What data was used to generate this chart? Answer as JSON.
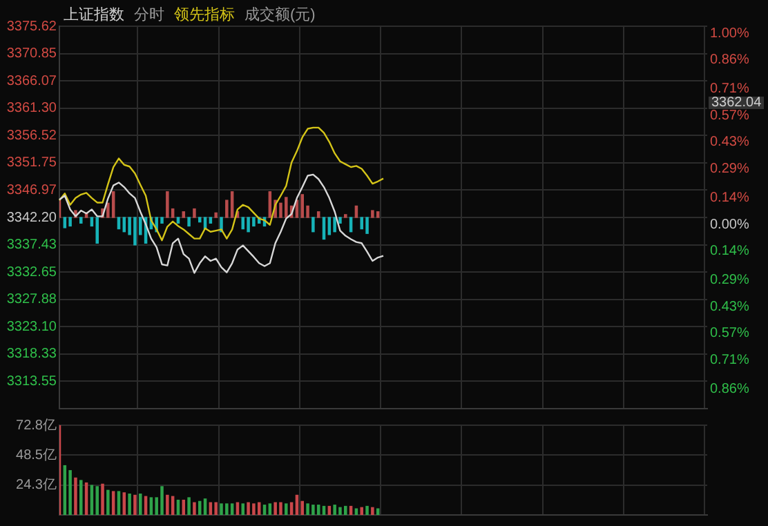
{
  "chart_data": [
    {
      "type": "line",
      "title": "上证指数",
      "annotations": [
        "分时",
        "成交额(元)",
        "3362.04"
      ],
      "grid": true,
      "tick_labels": "y",
      "categories": [
        null,
        null,
        null,
        null,
        null,
        null,
        null,
        null,
        null,
        null,
        null,
        null,
        null,
        null,
        null,
        null,
        null,
        null,
        null,
        null,
        null,
        null,
        null,
        null,
        null,
        null,
        null,
        null,
        null,
        null,
        null,
        null,
        null,
        null,
        null,
        null,
        null,
        null,
        null,
        null,
        null,
        null,
        null,
        null,
        null,
        null,
        null,
        null,
        null,
        null,
        null,
        null,
        null,
        null,
        null,
        null,
        null,
        null,
        null,
        null,
        null,
        null,
        null,
        null,
        null,
        null,
        null,
        null,
        null,
        null,
        null,
        null,
        null,
        null,
        null,
        null,
        null,
        null,
        null,
        null,
        null,
        null,
        null,
        null,
        null,
        null,
        null,
        null,
        null,
        null,
        null,
        null,
        null,
        null,
        null,
        null,
        null,
        null,
        null,
        null,
        null,
        null,
        null,
        null,
        null,
        null,
        null,
        null,
        null,
        null,
        null,
        null,
        null,
        null,
        null,
        null,
        null,
        null,
        null,
        null,
        null
      ],
      "ylim": [
        3308.78,
        3375.62
      ],
      "yticks": [
        3375.62,
        3370.85,
        3366.07,
        {
          "value": 3361.3,
          "label": "3361.30"
        },
        3356.52,
        3351.75,
        3346.97,
        {
          "value": 3342.2,
          "label": "3342.20"
        },
        3337.43,
        3332.65,
        3327.88,
        {
          "value": 3323.1,
          "label": "3323.10"
        },
        3318.33,
        3313.55,
        {
          "value": 3308.78,
          "label": null
        }
      ],
      "y2lim": [
        -1,
        1
      ],
      "y2ticks": [
        {
          "value": 1,
          "label": "1.00%"
        },
        {
          "value": 0.86,
          "label": "0.86%"
        },
        {
          "value": 0.71,
          "label": "0.71%"
        },
        {
          "value": 0.57,
          "label": "0.57%"
        },
        {
          "value": 0.43,
          "label": "0.43%"
        },
        {
          "value": 0.29,
          "label": "0.29%"
        },
        {
          "value": 0.14,
          "label": "0.14%"
        },
        {
          "value": 0,
          "label": "0.00%"
        },
        {
          "value": -0.14,
          "label": "0.14%"
        },
        {
          "value": -0.29,
          "label": "0.29%"
        },
        {
          "value": -0.43,
          "label": "0.43%"
        },
        {
          "value": -0.57,
          "label": "0.57%"
        },
        {
          "value": -0.71,
          "label": "0.71%"
        },
        {
          "value": -0.86,
          "label": "0.86%"
        },
        {
          "value": -1,
          "label": null
        }
      ],
      "series": [
        {
          "type": "bar",
          "base": [
            3342.2,
            3342.2,
            3342.2,
            3342.2,
            3342.2,
            3342.2,
            3342.2,
            3342.2,
            3342.2,
            3342.2,
            3342.2,
            3342.2,
            3342.2,
            3342.2,
            3342.2,
            3342.2,
            3342.2,
            3342.2,
            3342.2,
            3342.2,
            3342.2,
            3342.2,
            3342.2,
            3342.2,
            3342.2,
            3342.2,
            3342.2,
            3342.2,
            3342.2,
            3342.2,
            3342.2,
            3342.2,
            3342.2,
            3342.2,
            3342.2,
            3342.2,
            3342.2,
            3342.2,
            3342.2,
            3342.2,
            3342.2,
            3342.2,
            3342.2,
            3342.2,
            3342.2,
            3342.2,
            3342.2,
            3342.2,
            3342.2,
            3342.2,
            3342.2,
            3342.2,
            3342.2,
            3342.2,
            3342.2,
            3342.2,
            3342.2,
            3342.2,
            3342.2,
            3342.2,
            null,
            null,
            null,
            null,
            null,
            null,
            null,
            null,
            null,
            null,
            null,
            null,
            null,
            null,
            null,
            null,
            null,
            null,
            null,
            null,
            null,
            null,
            null,
            null,
            null,
            null,
            null,
            null,
            null,
            null,
            null,
            null,
            null,
            null,
            null,
            null,
            null,
            null,
            null,
            null,
            null,
            null,
            null,
            null,
            null,
            null,
            null,
            null,
            null,
            null,
            null,
            null,
            null,
            null,
            null,
            null,
            null,
            null,
            null,
            null,
            null
          ],
          "values": [
            3.0,
            -1.8,
            -1.5,
            1.2,
            -1.0,
            0.8,
            -1.5,
            -4.5,
            1.5,
            2.5,
            4.5,
            -2.0,
            -2.5,
            -3.0,
            -4.8,
            -3.0,
            -4.5,
            -2.0,
            -2.5,
            -1.0,
            4.5,
            1.5,
            -1.0,
            1.0,
            -1.5,
            1.5,
            -0.8,
            -2.0,
            -1.0,
            0.8,
            -2.5,
            3.0,
            4.5,
            1.0,
            -2.0,
            -2.5,
            -1.5,
            -1.0,
            -1.5,
            4.5,
            3.0,
            2.5,
            3.5,
            2.0,
            3.0,
            4.0,
            2.0,
            -2.5,
            1.0,
            -3.8,
            -3.0,
            -2.5,
            -1.0,
            0.5,
            -2.5,
            2.0,
            -2.0,
            -2.8,
            1.2,
            1.0,
            null,
            null,
            null,
            null,
            null,
            null,
            null,
            null,
            null,
            null,
            null,
            null,
            null,
            null,
            null,
            null,
            null,
            null,
            null,
            null,
            null,
            null,
            null,
            null,
            null,
            null,
            null,
            null,
            null,
            null,
            null,
            null,
            null,
            null,
            null,
            null,
            null,
            null,
            null,
            null,
            null,
            null,
            null,
            null,
            null,
            null,
            null,
            null,
            null,
            null,
            null,
            null,
            null,
            null,
            null,
            null,
            null,
            null,
            null,
            null,
            null
          ],
          "colors": [
            "#b84c4c",
            "#17b3b8",
            "#17b3b8",
            "#b84c4c",
            "#17b3b8",
            "#b84c4c",
            "#17b3b8",
            "#17b3b8",
            "#b84c4c",
            "#b84c4c",
            "#b84c4c",
            "#17b3b8",
            "#17b3b8",
            "#17b3b8",
            "#17b3b8",
            "#17b3b8",
            "#17b3b8",
            "#17b3b8",
            "#17b3b8",
            "#17b3b8",
            "#b84c4c",
            "#b84c4c",
            "#17b3b8",
            "#b84c4c",
            "#17b3b8",
            "#b84c4c",
            "#17b3b8",
            "#17b3b8",
            "#17b3b8",
            "#b84c4c",
            "#17b3b8",
            "#b84c4c",
            "#b84c4c",
            "#b84c4c",
            "#17b3b8",
            "#17b3b8",
            "#17b3b8",
            "#17b3b8",
            "#17b3b8",
            "#b84c4c",
            "#b84c4c",
            "#b84c4c",
            "#b84c4c",
            "#b84c4c",
            "#b84c4c",
            "#b84c4c",
            "#b84c4c",
            "#17b3b8",
            "#b84c4c",
            "#17b3b8",
            "#17b3b8",
            "#17b3b8",
            "#17b3b8",
            "#b84c4c",
            "#17b3b8",
            "#b84c4c",
            "#17b3b8",
            "#17b3b8",
            "#b84c4c",
            "#b84c4c",
            null,
            null,
            null,
            null,
            null,
            null,
            null,
            null,
            null,
            null,
            null,
            null,
            null,
            null,
            null,
            null,
            null,
            null,
            null,
            null,
            null,
            null,
            null,
            null,
            null,
            null,
            null,
            null,
            null,
            null,
            null,
            null,
            null,
            null,
            null,
            null,
            null,
            null,
            null,
            null,
            null,
            null,
            null,
            null,
            null,
            null,
            null,
            null,
            null,
            null,
            null,
            null,
            null,
            null,
            null,
            null,
            null,
            null,
            null,
            null,
            null
          ]
        },
        {
          "type": "line",
          "color": "#d8d8d8",
          "values": [
            3345.3,
            3346.0,
            3343.6,
            3342.4,
            3343.4,
            3342.9,
            3343.6,
            3342.4,
            3342.4,
            3345.5,
            3347.8,
            3348.3,
            3347.5,
            3346.4,
            3345.6,
            3343.2,
            3341.0,
            3338.5,
            3337.0,
            3334.0,
            3333.8,
            3337.7,
            3338.5,
            3335.8,
            3335.0,
            3332.5,
            3334.2,
            3335.4,
            3334.6,
            3335.0,
            3333.5,
            3332.6,
            3334.2,
            3336.6,
            3337.3,
            3336.3,
            3335.3,
            3334.2,
            3333.7,
            3334.2,
            3337.7,
            3339.7,
            3342.0,
            3342.8,
            3345.6,
            3347.5,
            3349.5,
            3349.7,
            3348.9,
            3347.5,
            3345.6,
            3343.2,
            3339.9,
            3339.0,
            3338.4,
            3337.9,
            3337.7,
            3336.2,
            3334.6,
            3335.2,
            3335.5,
            null,
            null,
            null,
            null,
            null,
            null,
            null,
            null,
            null,
            null,
            null,
            null,
            null,
            null,
            null,
            null,
            null,
            null,
            null,
            null,
            null,
            null,
            null,
            null,
            null,
            null,
            null,
            null,
            null,
            null,
            null,
            null,
            null,
            null,
            null,
            null,
            null,
            null,
            null,
            null,
            null,
            null,
            null,
            null,
            null,
            null,
            null,
            null,
            null,
            null,
            null,
            null,
            null,
            null,
            null,
            null,
            null,
            null,
            null,
            null
          ]
        },
        {
          "type": "line",
          "name": "领先指标",
          "color": "#d4c418",
          "values": [
            3345.2,
            3346.4,
            3344.4,
            3345.6,
            3346.2,
            3346.5,
            3345.6,
            3344.8,
            3344.8,
            3348.0,
            3351.0,
            3352.5,
            3351.4,
            3351.1,
            3349.9,
            3347.9,
            3346.0,
            3341.7,
            3340.1,
            3338.2,
            3340.6,
            3341.5,
            3340.7,
            3340.1,
            3339.3,
            3338.5,
            3338.5,
            3340.3,
            3339.7,
            3339.9,
            3340.1,
            3338.5,
            3340.1,
            3343.6,
            3344.4,
            3344.0,
            3343.0,
            3342.0,
            3341.7,
            3340.9,
            3344.4,
            3346.0,
            3347.7,
            3351.8,
            3353.8,
            3356.2,
            3357.7,
            3357.9,
            3357.9,
            3357.0,
            3355.4,
            3353.4,
            3352.0,
            3351.5,
            3351.0,
            3351.2,
            3350.7,
            3349.5,
            3348.1,
            3348.5,
            3349.0,
            null,
            null,
            null,
            null,
            null,
            null,
            null,
            null,
            null,
            null,
            null,
            null,
            null,
            null,
            null,
            null,
            null,
            null,
            null,
            null,
            null,
            null,
            null,
            null,
            null,
            null,
            null,
            null,
            null,
            null,
            null,
            null,
            null,
            null,
            null,
            null,
            null,
            null,
            null,
            null,
            null,
            null,
            null,
            null,
            null,
            null,
            null,
            null,
            null,
            null,
            null,
            null,
            null,
            null,
            null,
            null,
            null,
            null,
            null,
            null
          ]
        }
      ]
    },
    {
      "type": "bar",
      "grid": true,
      "tick_labels": "y",
      "categories": [
        null,
        null,
        null,
        null,
        null,
        null,
        null,
        null,
        null,
        null,
        null,
        null,
        null,
        null,
        null,
        null,
        null,
        null,
        null,
        null,
        null,
        null,
        null,
        null,
        null,
        null,
        null,
        null,
        null,
        null,
        null,
        null,
        null,
        null,
        null,
        null,
        null,
        null,
        null,
        null,
        null,
        null,
        null,
        null,
        null,
        null,
        null,
        null,
        null,
        null,
        null,
        null,
        null,
        null,
        null,
        null,
        null,
        null,
        null,
        null,
        null,
        null,
        null,
        null,
        null,
        null,
        null,
        null,
        null,
        null,
        null,
        null,
        null,
        null,
        null,
        null,
        null,
        null,
        null,
        null,
        null,
        null,
        null,
        null,
        null,
        null,
        null,
        null,
        null,
        null,
        null,
        null,
        null,
        null,
        null,
        null,
        null,
        null,
        null,
        null,
        null,
        null,
        null,
        null,
        null,
        null,
        null,
        null,
        null,
        null,
        null,
        null,
        null,
        null,
        null,
        null,
        null,
        null,
        null,
        null,
        null
      ],
      "ylim": [
        0,
        72.8
      ],
      "yticks": [
        {
          "value": 24.3,
          "label": "24.3亿"
        },
        {
          "value": 48.5,
          "label": "48.5亿"
        },
        {
          "value": 72.8,
          "label": "72.8亿"
        }
      ],
      "values": [
        72.8,
        40,
        36,
        30,
        28,
        26,
        24,
        23,
        25,
        20,
        19,
        19,
        18,
        17,
        16,
        17,
        15,
        14,
        14,
        23,
        16,
        15,
        12,
        12,
        14,
        10,
        11,
        13,
        10,
        10,
        9,
        9,
        9,
        10,
        9,
        10,
        9,
        10,
        8,
        9,
        10,
        10,
        9,
        10,
        16,
        11,
        9,
        8,
        8,
        7,
        7,
        8,
        6,
        7,
        7,
        5,
        6,
        7,
        6,
        5,
        null,
        null,
        null,
        null,
        null,
        null,
        null,
        null,
        null,
        null,
        null,
        null,
        null,
        null,
        null,
        null,
        null,
        null,
        null,
        null,
        null,
        null,
        null,
        null,
        null,
        null,
        null,
        null,
        null,
        null,
        null,
        null,
        null,
        null,
        null,
        null,
        null,
        null,
        null,
        null,
        null,
        null,
        null,
        null,
        null,
        null,
        null,
        null,
        null,
        null,
        null,
        null,
        null,
        null,
        null,
        null,
        null,
        null,
        null,
        null,
        null
      ],
      "colors": [
        "#c9474a",
        "#2fa34a",
        "#2fa34a",
        "#c9474a",
        "#2fa34a",
        "#c9474a",
        "#2fa34a",
        "#2fa34a",
        "#c9474a",
        "#2fa34a",
        "#c9474a",
        "#2fa34a",
        "#c9474a",
        "#2fa34a",
        "#c9474a",
        "#2fa34a",
        "#c9474a",
        "#2fa34a",
        "#2fa34a",
        "#2fa34a",
        "#c9474a",
        "#c9474a",
        "#2fa34a",
        "#c9474a",
        "#2fa34a",
        "#c9474a",
        "#2fa34a",
        "#2fa34a",
        "#c9474a",
        "#c9474a",
        "#2fa34a",
        "#2fa34a",
        "#2fa34a",
        "#c9474a",
        "#2fa34a",
        "#c9474a",
        "#c9474a",
        "#c9474a",
        "#2fa34a",
        "#2fa34a",
        "#c9474a",
        "#c9474a",
        "#2fa34a",
        "#c9474a",
        "#c9474a",
        "#c9474a",
        "#2fa34a",
        "#2fa34a",
        "#2fa34a",
        "#2fa34a",
        "#c9474a",
        "#2fa34a",
        "#2fa34a",
        "#2fa34a",
        "#c9474a",
        "#2fa34a",
        "#c9474a",
        "#2fa34a",
        "#c9474a",
        "#2fa34a",
        null,
        null,
        null,
        null,
        null,
        null,
        null,
        null,
        null,
        null,
        null,
        null,
        null,
        null,
        null,
        null,
        null,
        null,
        null,
        null,
        null,
        null,
        null,
        null,
        null,
        null,
        null,
        null,
        null,
        null,
        null,
        null,
        null,
        null,
        null,
        null,
        null,
        null,
        null,
        null,
        null,
        null,
        null,
        null,
        null,
        null,
        null,
        null,
        null,
        null,
        null,
        null,
        null,
        null,
        null,
        null,
        null,
        null,
        null,
        null,
        null
      ]
    }
  ]
}
